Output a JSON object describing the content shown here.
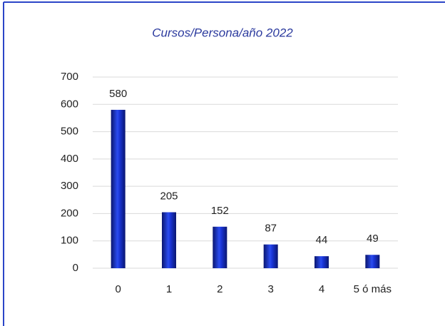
{
  "chart_data": {
    "type": "bar",
    "title": "Cursos/Persona/año 2022",
    "categories": [
      "0",
      "1",
      "2",
      "3",
      "4",
      "5 ó más"
    ],
    "values": [
      580,
      205,
      152,
      87,
      44,
      49
    ],
    "color": "#1a35d6",
    "ylim": [
      0,
      700
    ],
    "yticks": [
      0,
      100,
      200,
      300,
      400,
      500,
      600,
      700
    ],
    "grid": true
  }
}
